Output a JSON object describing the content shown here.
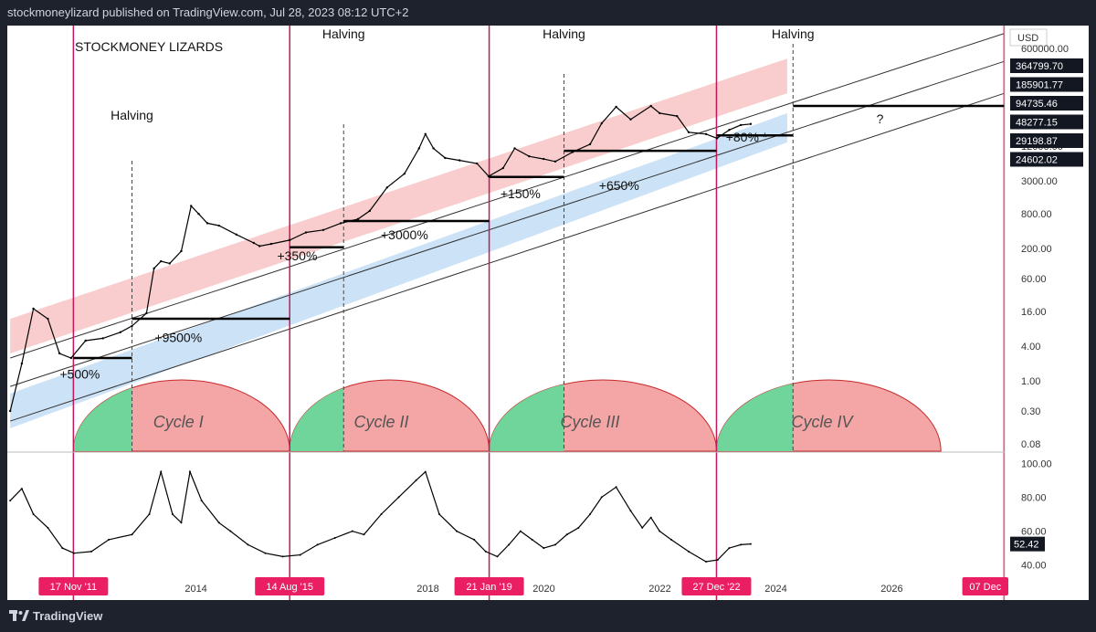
{
  "header": {
    "publisher_text": "stockmoneylizard published on TradingView.com, Jul 28, 2023 08:12 UTC+2"
  },
  "footer": {
    "brand": "TradingView"
  },
  "colors": {
    "background": "#ffffff",
    "frame": "#1e222d",
    "vertical_lines": "#c2185b",
    "date_badge": "#e91e63",
    "upper_band": "#f8c8c8",
    "lower_band": "#c7dff5",
    "cycle_red": "#f4a6a6",
    "cycle_green": "#6fd59a",
    "price_tag_bg": "#131722"
  },
  "chart_data": [
    {
      "type": "line",
      "title": "STOCKMONEY LIZARDS",
      "subtitle": "",
      "currency": "USD",
      "yscale": "log",
      "y_ticks": [
        "600000.00",
        "12000.00",
        "3000.00",
        "800.00",
        "200.00",
        "60.00",
        "16.00",
        "4.00",
        "1.00",
        "0.30",
        "0.08"
      ],
      "x_ticks": [
        "2014",
        "2016",
        "2018",
        "2020",
        "2022",
        "2024",
        "2026"
      ],
      "x_range": [
        2010.75,
        2027.95
      ],
      "y_range": [
        0.06,
        1500000
      ],
      "series": [
        {
          "x": [
            2010.8,
            2011.0,
            2011.2,
            2011.45,
            2011.65,
            2011.85,
            2012.1,
            2012.4,
            2012.7,
            2012.9,
            2013.15,
            2013.28,
            2013.4,
            2013.55,
            2013.75,
            2013.92,
            2014.05,
            2014.2,
            2014.4,
            2014.7,
            2015.0,
            2015.1,
            2015.3,
            2015.62,
            2015.9,
            2016.2,
            2016.5,
            2016.8,
            2017.0,
            2017.3,
            2017.6,
            2017.85,
            2017.96,
            2018.1,
            2018.3,
            2018.55,
            2018.85,
            2019.05,
            2019.3,
            2019.5,
            2019.75,
            2020.0,
            2020.2,
            2020.5,
            2020.8,
            2021.0,
            2021.25,
            2021.5,
            2021.85,
            2022.0,
            2022.3,
            2022.5,
            2022.8,
            2022.99,
            2023.2,
            2023.4,
            2023.57
          ],
          "y": [
            0.3,
            2.0,
            18.0,
            12.0,
            3.0,
            2.5,
            5.0,
            5.5,
            7.0,
            9.0,
            15.0,
            90.0,
            120.0,
            110.0,
            180.0,
            1100.0,
            800.0,
            550.0,
            500.0,
            350.0,
            250.0,
            220.0,
            240.0,
            280.0,
            380.0,
            420.0,
            550.0,
            650.0,
            900.0,
            2300.0,
            4000.0,
            11000.0,
            19500.0,
            11000.0,
            7500.0,
            6800.0,
            6000.0,
            3600.0,
            5000.0,
            11000.0,
            8000.0,
            7200.0,
            6500.0,
            9500.0,
            13000.0,
            30000.0,
            58000.0,
            35000.0,
            60000.0,
            45000.0,
            40000.0,
            21000.0,
            19500.0,
            16500.0,
            23000.0,
            28000.0,
            29198.87
          ]
        }
      ],
      "band_lines": [
        {
          "x": [
            2010.8,
            2027.95
          ],
          "y": [
            2.5,
            1100000
          ]
        },
        {
          "x": [
            2010.8,
            2027.95
          ],
          "y": [
            0.8,
            360000
          ]
        },
        {
          "x": [
            2010.8,
            2027.95
          ],
          "y": [
            0.2,
            100000
          ]
        }
      ],
      "bands": [
        {
          "name": "upper",
          "x": [
            2010.8,
            2024.2
          ],
          "y_low": [
            3.0,
            100000
          ],
          "y_high": [
            12.0,
            400000
          ]
        },
        {
          "name": "lower",
          "x": [
            2010.8,
            2024.2
          ],
          "y_low": [
            0.15,
            14000
          ],
          "y_high": [
            0.6,
            45000
          ]
        }
      ],
      "price_tags": [
        "364799.70",
        "185901.77",
        "94735.46",
        "48277.15",
        "29198.87",
        "24602.02"
      ],
      "annotations": [
        {
          "text": "Halving",
          "x": 2012.9,
          "y": 35000
        },
        {
          "text": "Halving",
          "x": 2016.55,
          "y": 1200000
        },
        {
          "text": "Halving",
          "x": 2020.35,
          "y": 3300000
        },
        {
          "text": "Halving",
          "x": 2024.3,
          "y": 900000000
        },
        {
          "text": "+500%",
          "x": 2012.0,
          "y": 1.1
        },
        {
          "text": "+9500%",
          "x": 2013.7,
          "y": 4.7
        },
        {
          "text": "+350%",
          "x": 2015.75,
          "y": 125
        },
        {
          "text": "+3000%",
          "x": 2017.6,
          "y": 290
        },
        {
          "text": "+150%",
          "x": 2019.6,
          "y": 1500
        },
        {
          "text": "+650%",
          "x": 2021.3,
          "y": 2100
        },
        {
          "text": "+80% *",
          "x": 2023.5,
          "y": 14500
        },
        {
          "text": "?",
          "x": 2025.8,
          "y": 30000
        },
        {
          "text": "Cycle I",
          "x": 2013.7,
          "y": 0.22
        },
        {
          "text": "Cycle II",
          "x": 2017.2,
          "y": 0.22
        },
        {
          "text": "Cycle III",
          "x": 2020.8,
          "y": 0.22
        },
        {
          "text": "Cycle IV",
          "x": 2024.8,
          "y": 0.22
        }
      ],
      "level_segments": [
        {
          "x": [
            2011.89,
            2012.9
          ],
          "y": 2.5
        },
        {
          "x": [
            2012.9,
            2015.62
          ],
          "y": 12
        },
        {
          "x": [
            2015.62,
            2016.55
          ],
          "y": 210
        },
        {
          "x": [
            2016.55,
            2019.06
          ],
          "y": 600
        },
        {
          "x": [
            2019.06,
            2020.35
          ],
          "y": 3500
        },
        {
          "x": [
            2020.35,
            2022.98
          ],
          "y": 10000
        },
        {
          "x": [
            2022.98,
            2024.3
          ],
          "y": 18500
        },
        {
          "x": [
            2024.3,
            2027.95
          ],
          "y": 60000
        }
      ],
      "halvings": [
        2012.9,
        2016.55,
        2020.35,
        2024.3
      ],
      "vertical_dates": [
        {
          "label": "17 Nov '11",
          "x": 2011.89
        },
        {
          "label": "14 Aug '15",
          "x": 2015.62
        },
        {
          "label": "21 Jan '19",
          "x": 2019.06
        },
        {
          "label": "27 Dec '22",
          "x": 2022.98
        },
        {
          "label": "07 Dec",
          "x": 2027.94
        }
      ],
      "cycles": [
        {
          "name": "Cycle I",
          "x": [
            2011.89,
            2015.62
          ],
          "green_until": 2012.9
        },
        {
          "name": "Cycle II",
          "x": [
            2015.62,
            2019.06
          ],
          "green_until": 2016.55
        },
        {
          "name": "Cycle III",
          "x": [
            2019.06,
            2022.98
          ],
          "green_until": 2020.35
        },
        {
          "name": "Cycle IV",
          "x": [
            2022.98,
            2026.85
          ],
          "green_until": 2024.3
        }
      ],
      "legend": "none",
      "grid": false
    },
    {
      "type": "line",
      "y_ticks": [
        "100.00",
        "80.00",
        "60.00",
        "40.00"
      ],
      "y_range": [
        35,
        105
      ],
      "last_value": "52.42",
      "series": [
        {
          "x": [
            2010.8,
            2011.0,
            2011.2,
            2011.45,
            2011.7,
            2011.9,
            2012.2,
            2012.5,
            2012.9,
            2013.2,
            2013.4,
            2013.6,
            2013.75,
            2013.9,
            2014.1,
            2014.4,
            2014.6,
            2014.9,
            2015.2,
            2015.5,
            2015.8,
            2016.1,
            2016.4,
            2016.7,
            2016.9,
            2017.2,
            2017.5,
            2017.8,
            2017.96,
            2018.2,
            2018.5,
            2018.8,
            2019.0,
            2019.2,
            2019.4,
            2019.6,
            2019.8,
            2020.0,
            2020.2,
            2020.4,
            2020.6,
            2020.8,
            2021.0,
            2021.25,
            2021.5,
            2021.7,
            2021.85,
            2022.0,
            2022.2,
            2022.5,
            2022.8,
            2023.0,
            2023.2,
            2023.4,
            2023.57
          ],
          "y": [
            78,
            85,
            70,
            62,
            50,
            47,
            48,
            55,
            58,
            70,
            95,
            70,
            65,
            95,
            78,
            65,
            60,
            52,
            47,
            45,
            46,
            52,
            56,
            60,
            58,
            70,
            80,
            90,
            95,
            70,
            60,
            55,
            48,
            45,
            52,
            60,
            55,
            50,
            52,
            58,
            62,
            70,
            80,
            86,
            72,
            62,
            68,
            60,
            55,
            48,
            42,
            43,
            50,
            52,
            52.42
          ]
        }
      ]
    }
  ]
}
